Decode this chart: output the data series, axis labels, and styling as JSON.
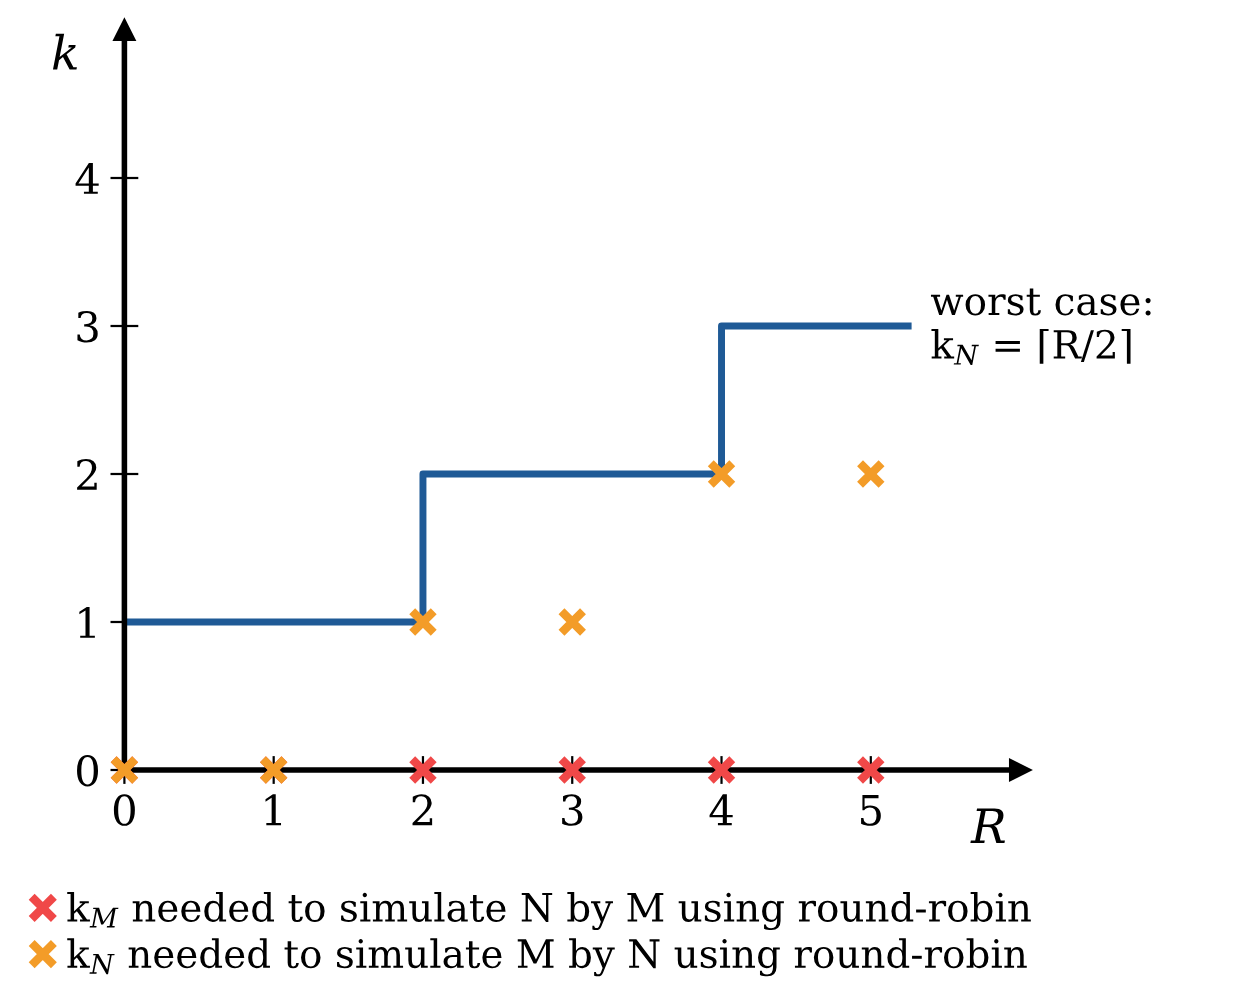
{
  "chart_data": {
    "type": "scatter",
    "xlabel": "R",
    "ylabel": "k",
    "xlim": [
      0,
      6
    ],
    "ylim": [
      0,
      5
    ],
    "xticks": [
      0,
      1,
      2,
      3,
      4,
      5
    ],
    "yticks": [
      0,
      1,
      2,
      3,
      4
    ],
    "grid": false,
    "legend": "bottom",
    "marker": "cross",
    "series": [
      {
        "type": "step",
        "color": "#1f5a96",
        "x": [
          0,
          2,
          4,
          5.25
        ],
        "values": [
          1,
          2,
          3,
          3
        ],
        "marker": "none"
      },
      {
        "name": "k$_{M}$ needed to simulate N by M using round-robin",
        "color": "#f04848",
        "x": [
          0,
          1,
          2,
          3,
          4,
          5
        ],
        "values": [
          0,
          0,
          0,
          0,
          0,
          0
        ]
      },
      {
        "name": "k$_{N}$ needed to simulate M by N using round-robin",
        "color": "#f39c28",
        "x": [
          0,
          1,
          2,
          3,
          4,
          5
        ],
        "values": [
          0,
          0,
          1,
          1,
          2,
          2
        ]
      }
    ],
    "annotations": [
      {
        "text": "worst case:\nk$_{N}$ = ⌈R/2⌉",
        "x": 5.25,
        "y": 3
      }
    ]
  }
}
